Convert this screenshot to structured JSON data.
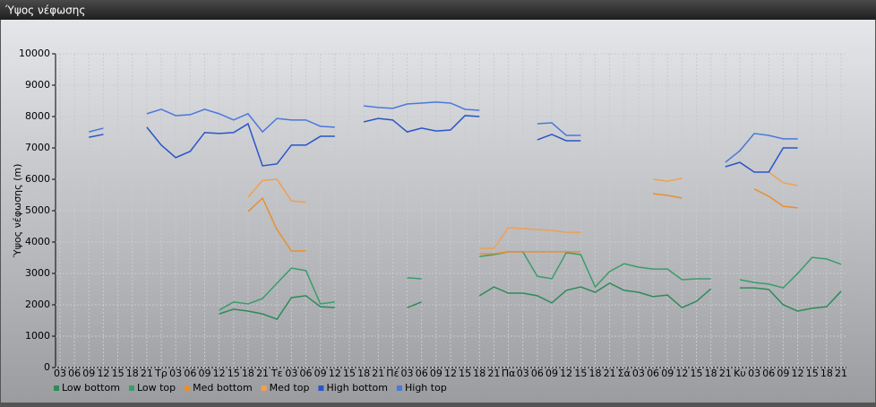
{
  "chart_data": {
    "type": "line",
    "title": "Ύψος νέφωσης",
    "y_label": "Ύψος νέφωσης (m)",
    "categories": [
      "03",
      "06",
      "09",
      "12",
      "15",
      "18",
      "21",
      "Τρ",
      "03",
      "06",
      "09",
      "12",
      "15",
      "18",
      "21",
      "Τε",
      "03",
      "06",
      "09",
      "12",
      "15",
      "18",
      "21",
      "Πέ",
      "03",
      "06",
      "09",
      "12",
      "15",
      "18",
      "21",
      "Πα",
      "03",
      "06",
      "09",
      "12",
      "15",
      "18",
      "21",
      "Σά",
      "03",
      "06",
      "09",
      "12",
      "15",
      "18",
      "21",
      "Κυ",
      "03",
      "06",
      "09",
      "12",
      "15",
      "18",
      "21"
    ],
    "ylim": [
      0,
      10000
    ],
    "yticks": [
      0,
      1000,
      2000,
      3000,
      4000,
      5000,
      6000,
      7000,
      8000,
      9000,
      10000
    ],
    "grid": true,
    "legend": "bottom-left",
    "series": [
      {
        "name": "Low bottom",
        "color": "#2e8b57",
        "values": [
          null,
          null,
          null,
          null,
          null,
          null,
          null,
          null,
          null,
          null,
          null,
          1710,
          1860,
          1800,
          1710,
          1540,
          2230,
          2290,
          1940,
          1910,
          null,
          null,
          null,
          null,
          1910,
          2090,
          null,
          null,
          null,
          2290,
          2570,
          2370,
          2370,
          2290,
          2060,
          2460,
          2570,
          2400,
          2690,
          2460,
          2400,
          2260,
          2310,
          1910,
          2110,
          2510,
          null,
          2540,
          2540,
          2490,
          2000,
          1800,
          1890,
          1940,
          2430
        ]
      },
      {
        "name": "Low top",
        "color": "#3a9d68",
        "values": [
          null,
          null,
          null,
          null,
          null,
          null,
          null,
          null,
          null,
          null,
          null,
          1830,
          2090,
          2030,
          2200,
          2690,
          3170,
          3090,
          2030,
          2090,
          null,
          null,
          null,
          null,
          2860,
          2830,
          null,
          null,
          null,
          3540,
          3600,
          3690,
          3690,
          2910,
          2830,
          3660,
          3600,
          2570,
          3060,
          3310,
          3200,
          3140,
          3140,
          2800,
          2830,
          2830,
          null,
          2800,
          2710,
          2660,
          2540,
          3000,
          3510,
          3460,
          3290
        ]
      },
      {
        "name": "Med bottom",
        "color": "#e8902e",
        "values": [
          null,
          null,
          null,
          null,
          null,
          null,
          null,
          null,
          null,
          null,
          null,
          null,
          null,
          4970,
          5400,
          4400,
          3710,
          3720,
          null,
          null,
          null,
          null,
          null,
          null,
          null,
          null,
          null,
          null,
          null,
          3630,
          3630,
          3690,
          3690,
          3690,
          3690,
          3690,
          3690,
          null,
          null,
          null,
          null,
          5540,
          5490,
          5400,
          null,
          null,
          null,
          null,
          5690,
          5460,
          5140,
          5090,
          null,
          null,
          null
        ]
      },
      {
        "name": "Med top",
        "color": "#f0a050",
        "values": [
          null,
          null,
          null,
          null,
          null,
          null,
          null,
          null,
          null,
          null,
          null,
          null,
          null,
          5430,
          5960,
          6000,
          5310,
          5270,
          null,
          null,
          null,
          null,
          null,
          null,
          null,
          null,
          null,
          null,
          null,
          3800,
          3800,
          4460,
          4430,
          4400,
          4370,
          4310,
          4310,
          null,
          null,
          null,
          null,
          6000,
          5940,
          6030,
          null,
          null,
          null,
          null,
          null,
          6230,
          5890,
          5800,
          null,
          null,
          null
        ]
      },
      {
        "name": "High bottom",
        "color": "#2a55c8",
        "values": [
          null,
          null,
          7340,
          7430,
          null,
          null,
          7660,
          7090,
          6690,
          6890,
          7490,
          7460,
          7490,
          7770,
          6430,
          6490,
          7090,
          7090,
          7370,
          7370,
          null,
          7830,
          7940,
          7890,
          7510,
          7630,
          7540,
          7570,
          8030,
          8000,
          null,
          null,
          null,
          7260,
          7430,
          7230,
          7230,
          null,
          null,
          null,
          null,
          null,
          null,
          null,
          null,
          null,
          6400,
          6540,
          6230,
          6230,
          7000,
          7000,
          null,
          null,
          null
        ]
      },
      {
        "name": "High top",
        "color": "#4a78dc",
        "values": [
          null,
          null,
          7510,
          7630,
          null,
          null,
          8090,
          8230,
          8030,
          8060,
          8230,
          8090,
          7890,
          8090,
          7510,
          7940,
          7890,
          7890,
          7690,
          7660,
          null,
          8340,
          8290,
          8260,
          8400,
          8430,
          8460,
          8430,
          8230,
          8200,
          null,
          null,
          null,
          7770,
          7800,
          7400,
          7400,
          null,
          null,
          null,
          null,
          null,
          null,
          null,
          null,
          null,
          6540,
          6910,
          7460,
          7400,
          7290,
          7290,
          null,
          null,
          null
        ]
      }
    ]
  }
}
